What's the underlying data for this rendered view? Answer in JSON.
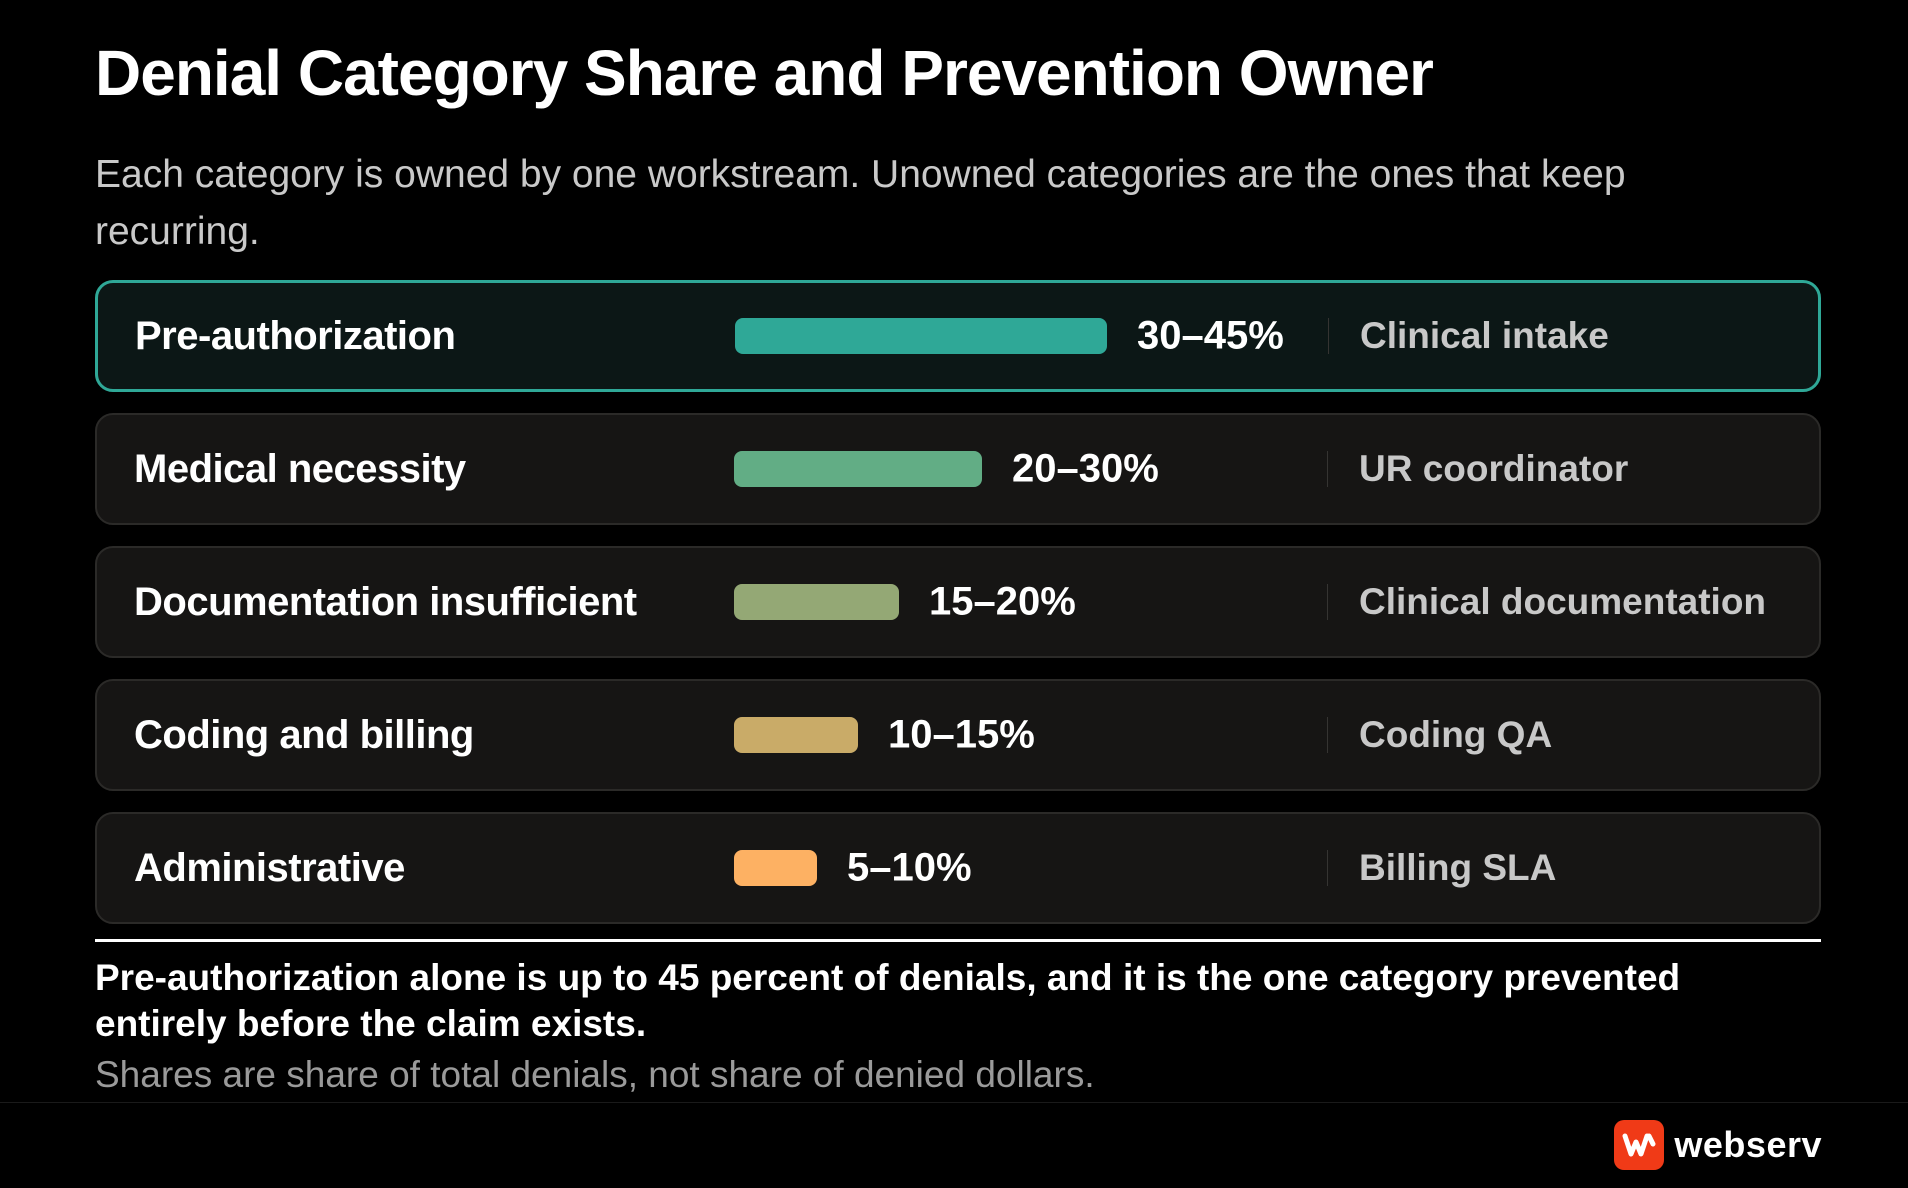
{
  "title": "Denial Category Share and Prevention Owner",
  "subtitle": "Each category is owned by one workstream. Unowned categories are the ones that keep recurring.",
  "takeaway": "Pre-authorization alone is up to 45 percent of denials, and it is the one category prevented entirely before the claim exists.",
  "footnote": "Shares are share of total denials, not share of denied dollars.",
  "brand": {
    "name": "webserv",
    "logo_icon": "webserv-logo-icon",
    "logo_color": "#f03a17"
  },
  "colors": {
    "highlight_border": "#2fa897"
  },
  "chart_data": {
    "type": "bar",
    "orientation": "horizontal",
    "categories": [
      "Pre-authorization",
      "Medical necessity",
      "Documentation insufficient",
      "Coding and billing",
      "Administrative"
    ],
    "ranges": [
      [
        30,
        45
      ],
      [
        20,
        30
      ],
      [
        15,
        20
      ],
      [
        10,
        15
      ],
      [
        5,
        10
      ]
    ],
    "values": [
      45,
      30,
      20,
      15,
      10
    ],
    "value_labels": [
      "30–45%",
      "20–30%",
      "15–20%",
      "10–15%",
      "5–10%"
    ],
    "owners": [
      "Clinical intake",
      "UR coordinator",
      "Clinical documentation",
      "Coding QA",
      "Billing SLA"
    ],
    "colors": [
      "#2fa897",
      "#62ad85",
      "#94a875",
      "#c9ab68",
      "#fdb163"
    ],
    "highlighted": [
      true,
      false,
      false,
      false,
      false
    ],
    "xlim": [
      0,
      45
    ]
  }
}
